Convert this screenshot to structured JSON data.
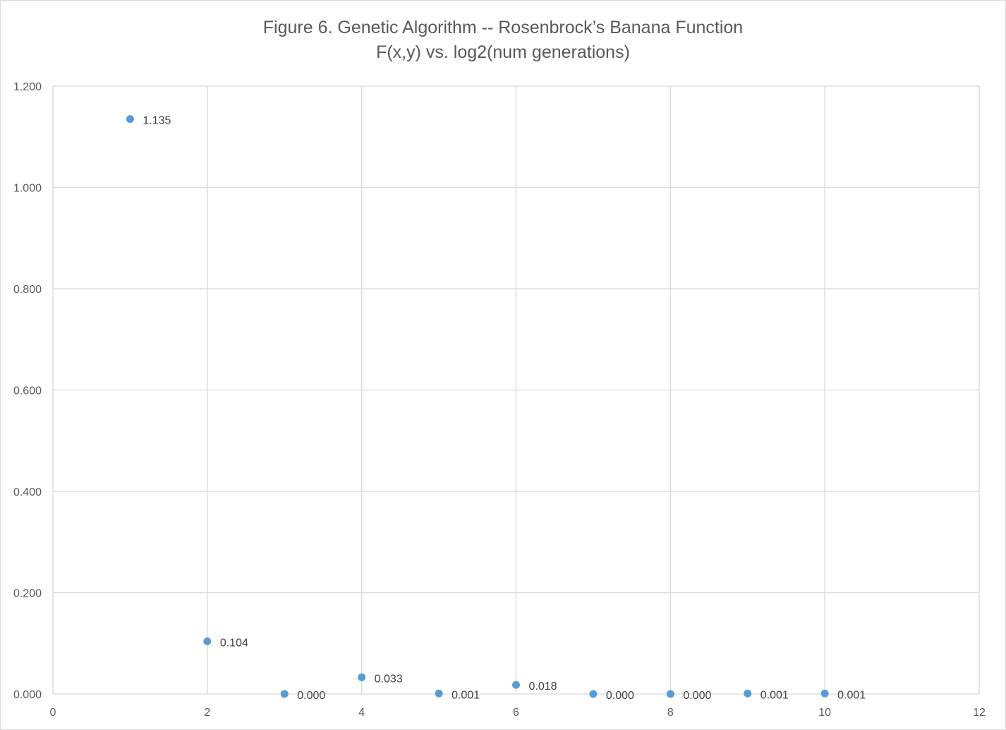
{
  "chart_data": {
    "type": "scatter",
    "title": "Figure 6. Genetic Algorithm -- Rosenbrock’s Banana Function",
    "subtitle": "F(x,y) vs. log2(num generations)",
    "xlabel": "",
    "ylabel": "",
    "xlim": [
      0,
      12
    ],
    "ylim": [
      0,
      1.2
    ],
    "x_ticks": [
      "0",
      "2",
      "4",
      "6",
      "8",
      "10",
      "12"
    ],
    "y_ticks": [
      "0.000",
      "0.200",
      "0.400",
      "0.600",
      "0.800",
      "1.000",
      "1.200"
    ],
    "grid": true,
    "marker_color": "#5b9bd5",
    "series": [
      {
        "x": [
          1,
          2,
          3,
          4,
          5,
          6,
          7,
          8,
          9,
          10
        ],
        "y": [
          1.135,
          0.104,
          0.0,
          0.033,
          0.001,
          0.018,
          0.0,
          0.0,
          0.001,
          0.001
        ],
        "labels": [
          "1.135",
          "0.104",
          "0.000",
          "0.033",
          "0.001",
          "0.018",
          "0.000",
          "0.000",
          "0.001",
          "0.001"
        ]
      }
    ]
  }
}
